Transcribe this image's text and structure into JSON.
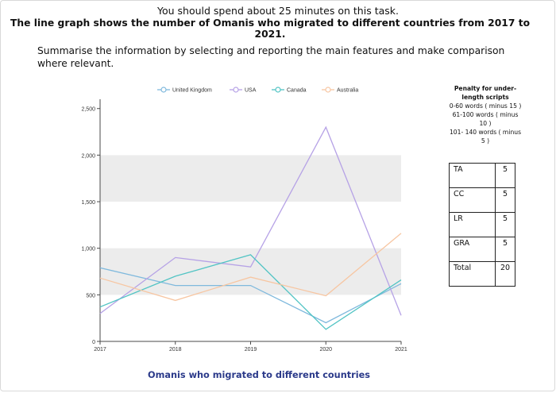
{
  "instruction": "You should spend about 25 minutes on this task.",
  "task_title": "The line graph shows the number of Omanis who migrated to different countries from 2017 to 2021.",
  "summary_prompt": "Summarise the information by selecting and reporting the main features and make comparison where relevant.",
  "chart_data": {
    "type": "line",
    "title": "Omanis who migrated to different countries",
    "xlabel": "",
    "ylabel": "",
    "x": [
      "2017",
      "2018",
      "2019",
      "2020",
      "2021"
    ],
    "ylim": [
      0,
      2600
    ],
    "yticks": [
      0,
      500,
      1000,
      1500,
      2000,
      2500
    ],
    "ytick_labels": [
      "0",
      "500",
      "1,000",
      "1,500",
      "2,000",
      "2,500"
    ],
    "legend_position": "top",
    "shaded_bands": [
      [
        500,
        1000
      ],
      [
        1500,
        2000
      ]
    ],
    "series": [
      {
        "name": "United Kingdom",
        "color": "#7fb9dd",
        "values": [
          790,
          600,
          600,
          200,
          620
        ]
      },
      {
        "name": "USA",
        "color": "#b6a2e6",
        "values": [
          300,
          900,
          800,
          2300,
          280
        ]
      },
      {
        "name": "Canada",
        "color": "#52c4c4",
        "values": [
          370,
          700,
          930,
          130,
          660
        ]
      },
      {
        "name": "Australia",
        "color": "#f7c6a2",
        "values": [
          680,
          440,
          690,
          490,
          1160
        ]
      }
    ]
  },
  "side_panel": {
    "title": "Penalty for under-length scripts",
    "lines": [
      "0-60 words ( minus 15 )",
      "61-100 words ( minus 10 )",
      "101- 140 words ( minus 5 )"
    ]
  },
  "score_table": [
    {
      "label": "TA",
      "value": "5"
    },
    {
      "label": "CC",
      "value": "5"
    },
    {
      "label": "LR",
      "value": "5"
    },
    {
      "label": "GRA",
      "value": "5"
    },
    {
      "label": "Total",
      "value": "20"
    }
  ]
}
